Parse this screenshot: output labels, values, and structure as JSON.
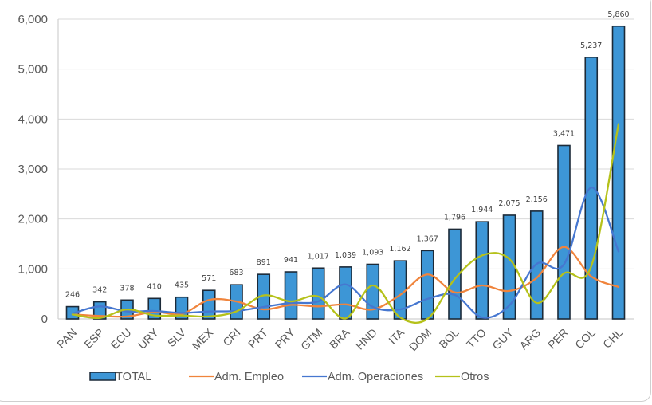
{
  "chart_data": {
    "type": "bar",
    "title": "",
    "xlabel": "",
    "ylabel": "",
    "ylim": [
      0,
      6000
    ],
    "yticks": [
      0,
      1000,
      2000,
      3000,
      4000,
      5000,
      6000
    ],
    "ytick_labels": [
      "0",
      "1,000",
      "2,000",
      "3,000",
      "4,000",
      "5,000",
      "6,000"
    ],
    "grid": true,
    "legend_position": "bottom",
    "categories": [
      "PAN",
      "ESP",
      "ECU",
      "URY",
      "SLV",
      "MEX",
      "CRI",
      "PRT",
      "PRY",
      "GTM",
      "BRA",
      "HND",
      "ITA",
      "DOM",
      "BOL",
      "TTO",
      "GUY",
      "ARG",
      "PER",
      "COL",
      "CHL"
    ],
    "series": [
      {
        "name": "TOTAL",
        "kind": "bar",
        "color": "#3d96d6",
        "values": [
          246,
          342,
          378,
          410,
          435,
          571,
          683,
          891,
          941,
          1017,
          1039,
          1093,
          1162,
          1367,
          1796,
          1944,
          2075,
          2156,
          3471,
          5237,
          5860
        ],
        "data_labels": [
          "246",
          "342",
          "378",
          "410",
          "435",
          "571",
          "683",
          "891",
          "941",
          "1,017",
          "1,039",
          "1,093",
          "1,162",
          "1,367",
          "1,796",
          "1,944",
          "2,075",
          "2,156",
          "3,471",
          "5,237",
          "5,860"
        ]
      },
      {
        "name": "Adm. Empleo",
        "kind": "line",
        "color": "#f0843c",
        "values": [
          90,
          60,
          50,
          140,
          100,
          380,
          350,
          190,
          280,
          250,
          290,
          190,
          480,
          890,
          530,
          670,
          560,
          820,
          1440,
          850,
          640
        ]
      },
      {
        "name": "Adm. Operaciones",
        "kind": "line",
        "color": "#4677d0",
        "values": [
          110,
          250,
          150,
          160,
          120,
          150,
          160,
          240,
          320,
          350,
          690,
          240,
          190,
          400,
          480,
          30,
          270,
          1100,
          1090,
          2630,
          1350
        ]
      },
      {
        "name": "Otros",
        "kind": "line",
        "color": "#b5c11a",
        "values": [
          90,
          20,
          190,
          70,
          70,
          50,
          150,
          470,
          350,
          450,
          10,
          670,
          30,
          0,
          800,
          1270,
          1200,
          320,
          910,
          1050,
          3900
        ]
      }
    ]
  }
}
